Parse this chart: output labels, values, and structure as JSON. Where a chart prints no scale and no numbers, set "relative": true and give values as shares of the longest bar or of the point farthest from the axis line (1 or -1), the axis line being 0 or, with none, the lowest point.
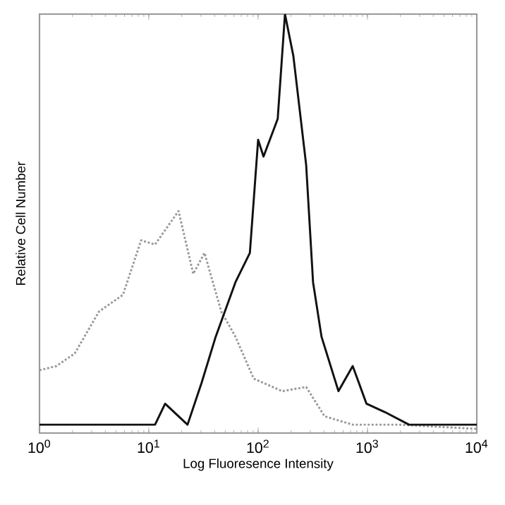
{
  "chart_data": {
    "type": "line",
    "relative": true,
    "xlabel": "Log Fluoresence Intensity",
    "ylabel": "Relative Cell Number",
    "log": "x",
    "xlim": [
      1,
      10000
    ],
    "xticks": [
      {
        "value": 1,
        "label": "10$^{0}$"
      },
      {
        "value": 10,
        "label": "10$^{1}$"
      },
      {
        "value": 100,
        "label": "10$^{2}$"
      },
      {
        "value": 1000,
        "label": "10$^{3}$"
      },
      {
        "value": 10000,
        "label": "10$^{4}$"
      }
    ],
    "tick_labels": "x",
    "grid": false,
    "series": [
      {
        "color": "#999999",
        "line_style": "dotted",
        "x": [
          1,
          1.43,
          2.1,
          3.5,
          5.8,
          8.5,
          11.4,
          18.7,
          25.5,
          32.3,
          46,
          62,
          91,
          166,
          275,
          405,
          733,
          1950,
          10000
        ],
        "values": [
          0.15,
          0.16,
          0.19,
          0.29,
          0.33,
          0.46,
          0.45,
          0.53,
          0.38,
          0.43,
          0.29,
          0.23,
          0.13,
          0.1,
          0.11,
          0.04,
          0.02,
          0.02,
          0.01
        ]
      },
      {
        "color": "#111111",
        "line_style": "solid",
        "x": [
          1,
          2.6,
          11.4,
          14.1,
          22.6,
          30.4,
          40.9,
          62,
          84,
          100,
          112,
          151,
          176,
          210,
          275,
          318,
          380,
          543,
          733,
          980,
          1445,
          2400,
          10000
        ],
        "values": [
          0.02,
          0.02,
          0.02,
          0.07,
          0.02,
          0.12,
          0.23,
          0.36,
          0.43,
          0.7,
          0.66,
          0.75,
          1.0,
          0.9,
          0.64,
          0.36,
          0.23,
          0.1,
          0.16,
          0.07,
          0.05,
          0.02,
          0.02
        ]
      }
    ]
  }
}
